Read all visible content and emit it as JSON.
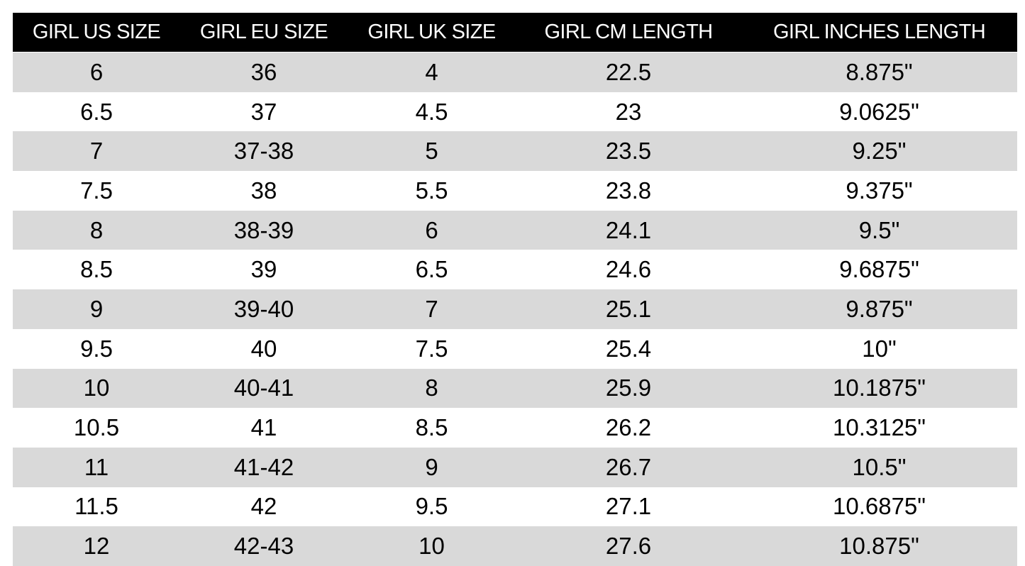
{
  "table": {
    "header": [
      "GIRL US SIZE",
      "GIRL EU SIZE",
      "GIRL UK SIZE",
      "GIRL CM LENGTH",
      "GIRL INCHES LENGTH"
    ],
    "rows": [
      [
        "6",
        "36",
        "4",
        "22.5",
        "8.875\""
      ],
      [
        "6.5",
        "37",
        "4.5",
        "23",
        "9.0625\""
      ],
      [
        "7",
        "37-38",
        "5",
        "23.5",
        "9.25\""
      ],
      [
        "7.5",
        "38",
        "5.5",
        "23.8",
        "9.375\""
      ],
      [
        "8",
        "38-39",
        "6",
        "24.1",
        "9.5\""
      ],
      [
        "8.5",
        "39",
        "6.5",
        "24.6",
        "9.6875\""
      ],
      [
        "9",
        "39-40",
        "7",
        "25.1",
        "9.875\""
      ],
      [
        "9.5",
        "40",
        "7.5",
        "25.4",
        "10\""
      ],
      [
        "10",
        "40-41",
        "8",
        "25.9",
        "10.1875\""
      ],
      [
        "10.5",
        "41",
        "8.5",
        "26.2",
        "10.3125\""
      ],
      [
        "11",
        "41-42",
        "9",
        "26.7",
        "10.5\""
      ],
      [
        "11.5",
        "42",
        "9.5",
        "27.1",
        "10.6875\""
      ],
      [
        "12",
        "42-43",
        "10",
        "27.6",
        "10.875\""
      ]
    ]
  }
}
